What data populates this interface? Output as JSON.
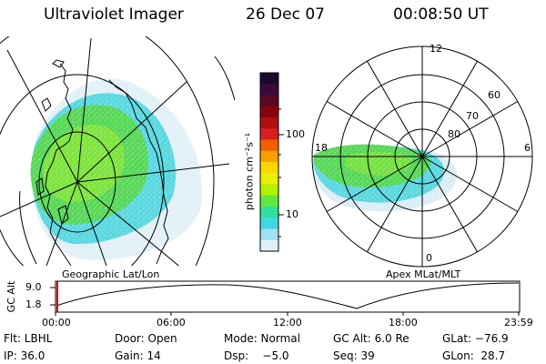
{
  "header": {
    "instrument": "Ultraviolet Imager",
    "date": "26 Dec 07",
    "time": "00:08:50 UT"
  },
  "colorbar": {
    "unit_label": "photon cm⁻²s⁻¹",
    "ticks": [
      "100",
      "10"
    ],
    "colors": [
      "#1a0a2a",
      "#3a0a3a",
      "#5a0a20",
      "#8a0010",
      "#b01010",
      "#d82020",
      "#f06000",
      "#f8a000",
      "#f8d800",
      "#e8f000",
      "#b0f000",
      "#60e840",
      "#30e0a0",
      "#40d8e0",
      "#a0e0f0",
      "#e0f0f8"
    ]
  },
  "left_map": {
    "label": "Geographic Lat/Lon"
  },
  "polar_plot": {
    "label": "Apex MLat/MLT",
    "mlt_labels": [
      "12",
      "18",
      "6",
      "0"
    ],
    "mlat_labels": [
      "60",
      "70",
      "80"
    ]
  },
  "timeline": {
    "ylabel": "GC Alt",
    "yticks": [
      "9.0",
      "1.8"
    ],
    "xticks": [
      "00:00",
      "06:00",
      "12:00",
      "18:00",
      "23:59"
    ]
  },
  "info": {
    "flt": "Flt: LBHL",
    "door": "Door: Open",
    "mode": "Mode: Normal",
    "gcalt": "GC Alt: 6.0 Re",
    "glat": "GLat: −76.9",
    "ip": "IP: 36.0",
    "gain": "Gain: 14",
    "dsp": "Dsp:    −5.0",
    "seq": "Seq: 39",
    "glon": "GLon:  28.7"
  }
}
